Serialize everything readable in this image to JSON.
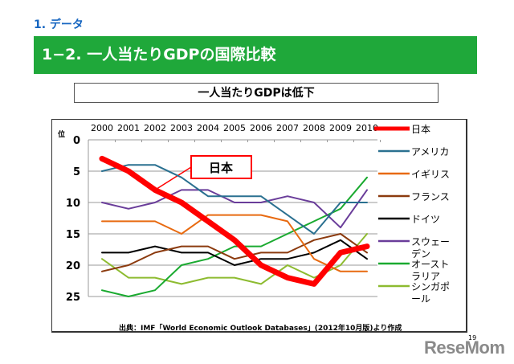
{
  "section": "1. データ",
  "banner": "1−2. 一人当たりGDPの国際比較",
  "subtitle": "一人当たりGDPは低下",
  "source": "出典：IMF「World Economic Outlook Databases」(2012年10月版)より作成",
  "page_number": "19",
  "logo": "ReseMom",
  "chart_data": {
    "type": "line",
    "ylabel": "位",
    "y_inverted": true,
    "ylim": [
      0,
      25
    ],
    "yticks": [
      "0",
      "5",
      "10",
      "15",
      "20",
      "25"
    ],
    "grid": true,
    "legend_placement": "right",
    "categories": [
      "2000",
      "2001",
      "2002",
      "2003",
      "2004",
      "2005",
      "2006",
      "2007",
      "2008",
      "2009",
      "2010"
    ],
    "annotation": "日本",
    "series": [
      {
        "name": "日本",
        "color": "#ff0000",
        "values": [
          3,
          5,
          8,
          10,
          13,
          16,
          20,
          22,
          23,
          18,
          17
        ]
      },
      {
        "name": "アメリカ",
        "color": "#2a7090",
        "values": [
          5,
          4,
          4,
          6,
          9,
          9,
          9,
          12,
          15,
          10,
          10
        ]
      },
      {
        "name": "イギリス",
        "color": "#e86a10",
        "values": [
          13,
          13,
          13,
          15,
          12,
          12,
          12,
          13,
          19,
          21,
          21
        ]
      },
      {
        "name": "フランス",
        "color": "#8b3a0e",
        "values": [
          21,
          20,
          18,
          17,
          17,
          19,
          18,
          18,
          16,
          15,
          18
        ]
      },
      {
        "name": "ドイツ",
        "color": "#000000",
        "values": [
          18,
          18,
          17,
          18,
          18,
          20,
          19,
          19,
          18,
          16,
          19
        ]
      },
      {
        "name": "スウェーデン",
        "color": "#6a3d9a",
        "values": [
          10,
          11,
          10,
          8,
          8,
          10,
          10,
          9,
          10,
          14,
          8
        ]
      },
      {
        "name": "オーストラリア",
        "color": "#1aaa30",
        "values": [
          24,
          25,
          24,
          20,
          19,
          17,
          17,
          15,
          13,
          11,
          6
        ]
      },
      {
        "name": "シンガポール",
        "color": "#8dbb30",
        "values": [
          19,
          22,
          22,
          23,
          22,
          22,
          23,
          20,
          22,
          20,
          15
        ]
      }
    ]
  }
}
